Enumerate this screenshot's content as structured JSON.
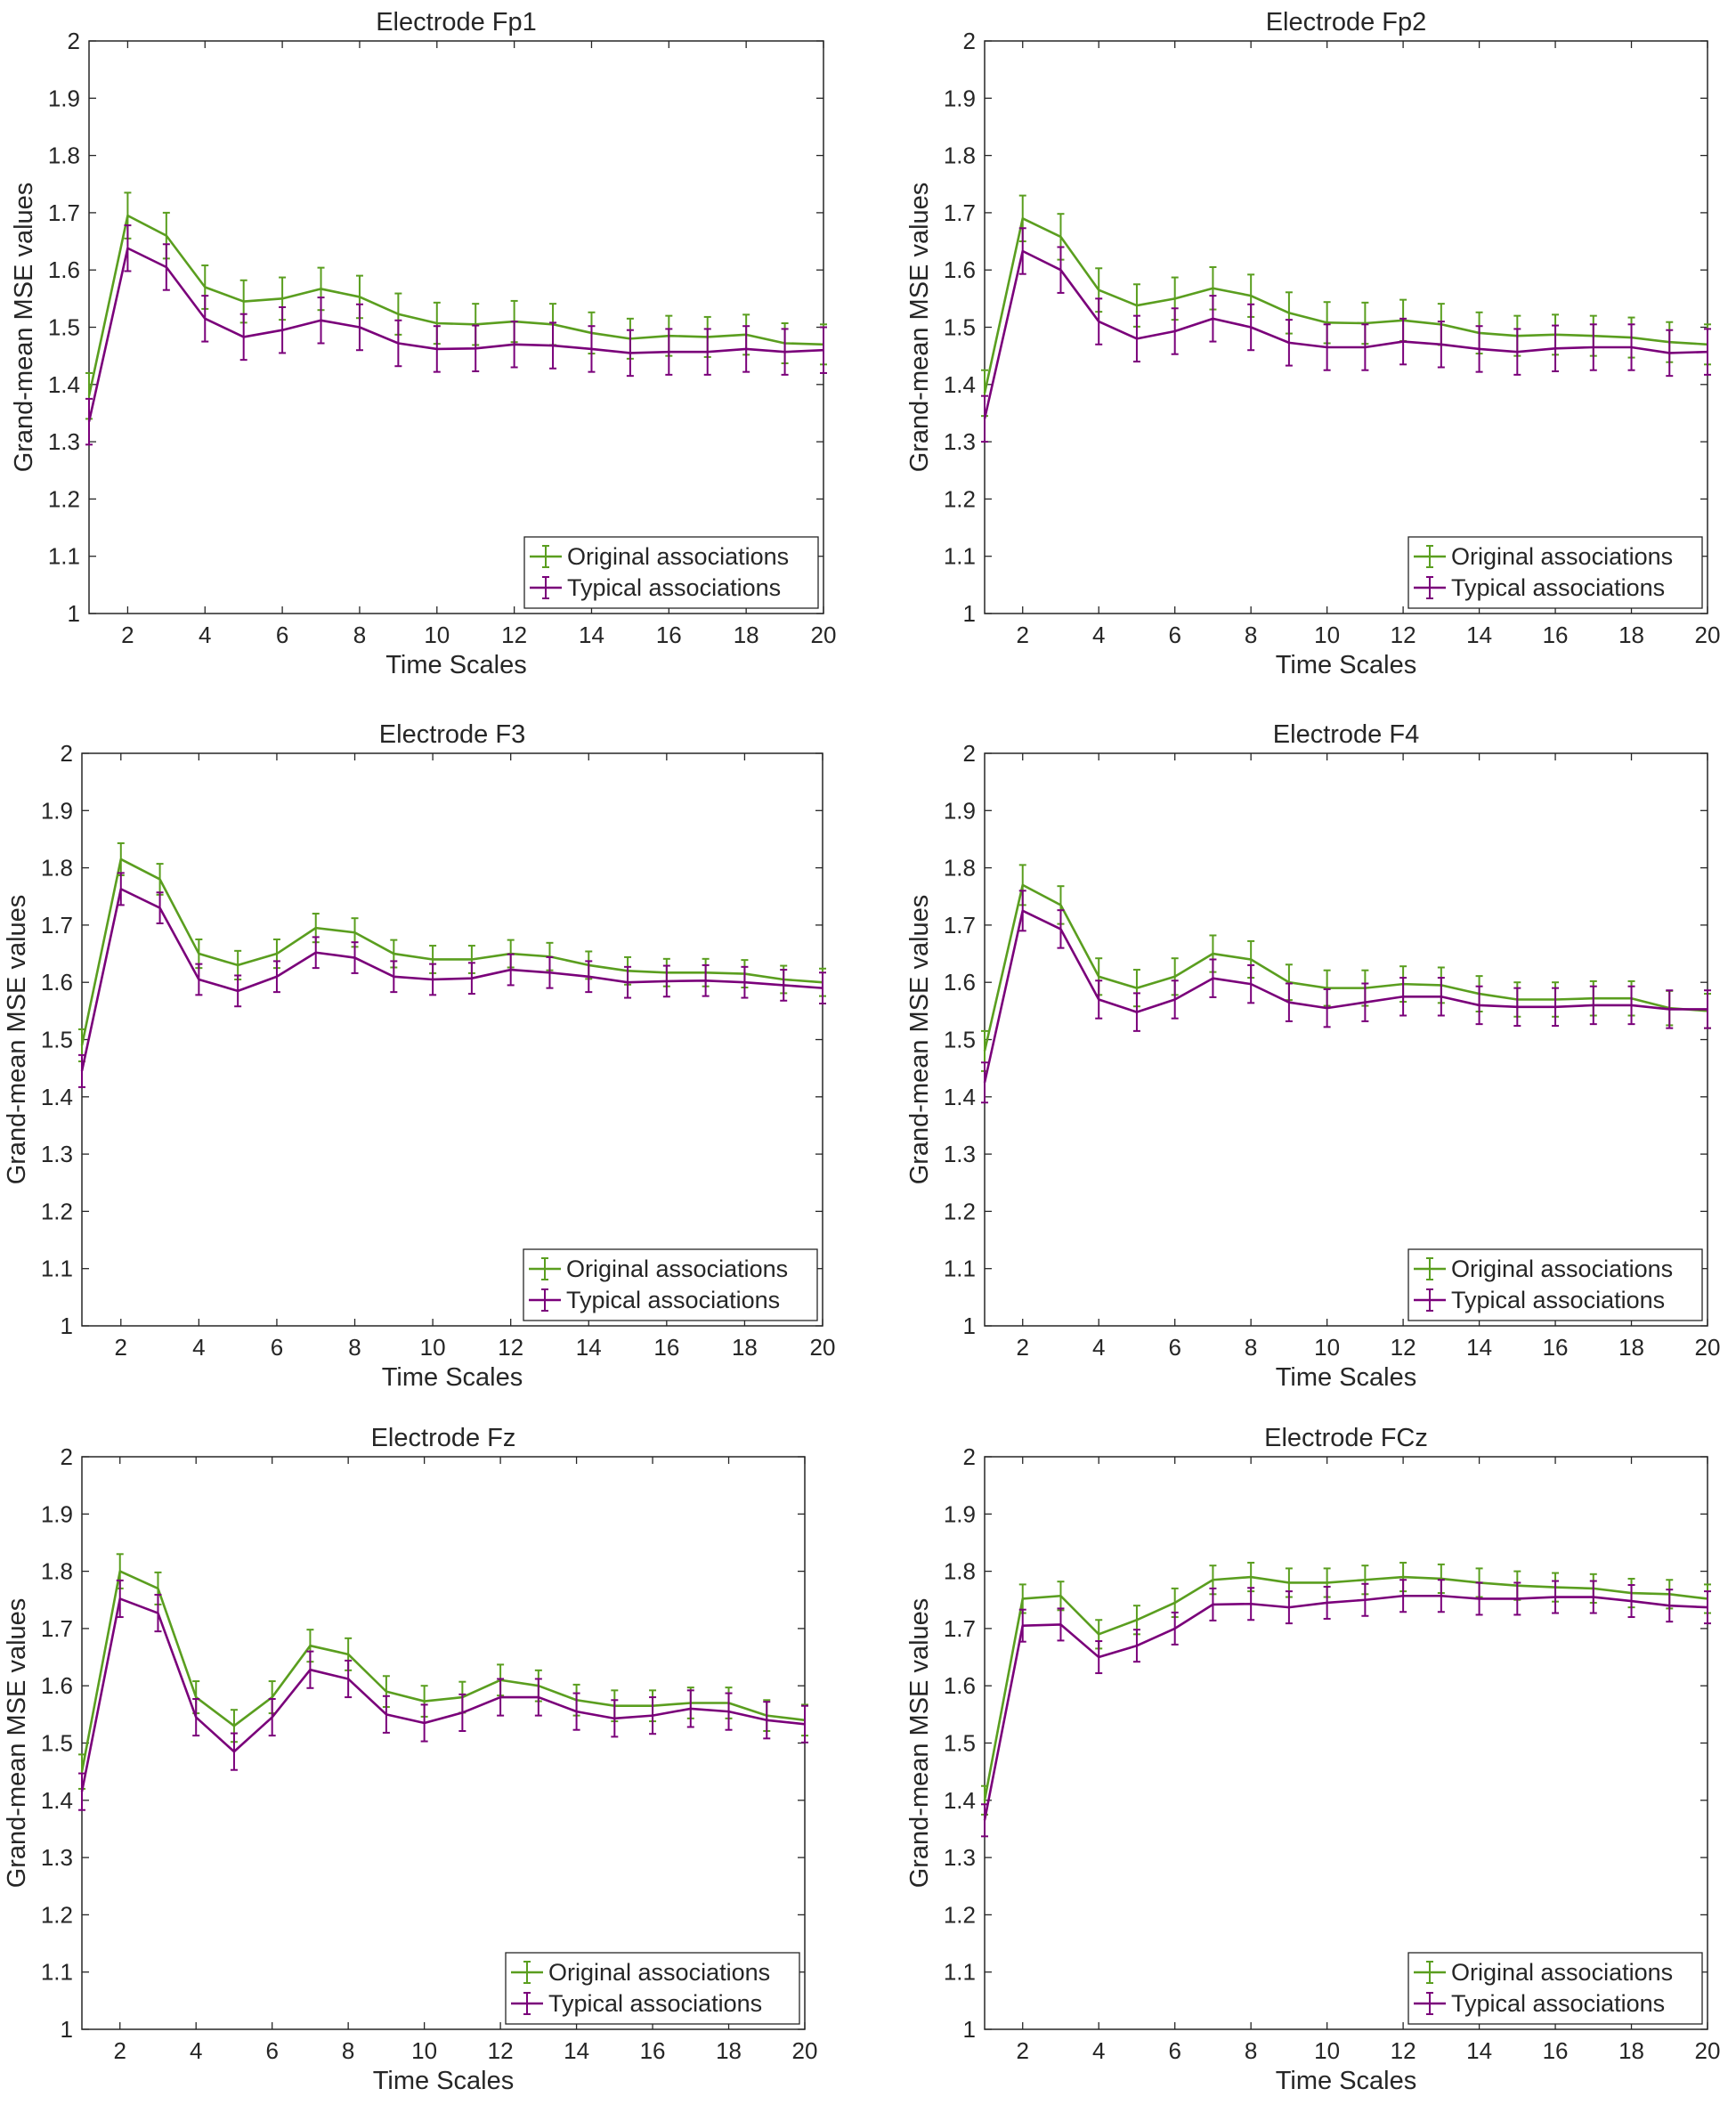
{
  "colors": {
    "original": "#5a9e1f",
    "typical": "#7a007a",
    "axis": "#262626",
    "background": "#ffffff"
  },
  "chart_data": [
    {
      "type": "line",
      "title": "Electrode Fp1",
      "xlabel": "Time Scales",
      "ylabel": "Grand-mean MSE values",
      "xlim": [
        1,
        20
      ],
      "ylim": [
        1,
        2
      ],
      "xticks": [
        2,
        4,
        6,
        8,
        10,
        12,
        14,
        16,
        18,
        20
      ],
      "yticks": [
        1,
        1.1,
        1.2,
        1.3,
        1.4,
        1.5,
        1.6,
        1.7,
        1.8,
        1.9,
        2
      ],
      "legend_position": "bottom-right",
      "x": [
        1,
        2,
        3,
        4,
        5,
        6,
        7,
        8,
        9,
        10,
        11,
        12,
        13,
        14,
        15,
        16,
        17,
        18,
        19,
        20
      ],
      "series": [
        {
          "name": "Original associations",
          "color_key": "original",
          "values": [
            1.38,
            1.695,
            1.66,
            1.57,
            1.545,
            1.55,
            1.567,
            1.553,
            1.523,
            1.507,
            1.505,
            1.51,
            1.505,
            1.49,
            1.48,
            1.485,
            1.483,
            1.487,
            1.472,
            1.47
          ],
          "errors": [
            0.04,
            0.04,
            0.04,
            0.038,
            0.037,
            0.037,
            0.037,
            0.037,
            0.036,
            0.036,
            0.036,
            0.036,
            0.036,
            0.036,
            0.035,
            0.035,
            0.035,
            0.035,
            0.035,
            0.035
          ]
        },
        {
          "name": "Typical associations",
          "color_key": "typical",
          "values": [
            1.335,
            1.638,
            1.605,
            1.515,
            1.483,
            1.495,
            1.512,
            1.5,
            1.472,
            1.462,
            1.463,
            1.47,
            1.468,
            1.462,
            1.455,
            1.457,
            1.457,
            1.462,
            1.457,
            1.46
          ],
          "errors": [
            0.04,
            0.04,
            0.04,
            0.04,
            0.04,
            0.04,
            0.04,
            0.04,
            0.04,
            0.04,
            0.04,
            0.04,
            0.04,
            0.04,
            0.04,
            0.04,
            0.04,
            0.04,
            0.04,
            0.04
          ]
        }
      ]
    },
    {
      "type": "line",
      "title": "Electrode Fp2",
      "xlabel": "Time Scales",
      "ylabel": "Grand-mean MSE values",
      "xlim": [
        1,
        20
      ],
      "ylim": [
        1,
        2
      ],
      "xticks": [
        2,
        4,
        6,
        8,
        10,
        12,
        14,
        16,
        18,
        20
      ],
      "yticks": [
        1,
        1.1,
        1.2,
        1.3,
        1.4,
        1.5,
        1.6,
        1.7,
        1.8,
        1.9,
        2
      ],
      "legend_position": "bottom-right",
      "x": [
        1,
        2,
        3,
        4,
        5,
        6,
        7,
        8,
        9,
        10,
        11,
        12,
        13,
        14,
        15,
        16,
        17,
        18,
        19,
        20
      ],
      "series": [
        {
          "name": "Original associations",
          "color_key": "original",
          "values": [
            1.385,
            1.69,
            1.658,
            1.565,
            1.538,
            1.55,
            1.568,
            1.555,
            1.525,
            1.508,
            1.507,
            1.512,
            1.505,
            1.49,
            1.485,
            1.487,
            1.485,
            1.482,
            1.474,
            1.47
          ],
          "errors": [
            0.04,
            0.04,
            0.04,
            0.038,
            0.037,
            0.037,
            0.037,
            0.037,
            0.036,
            0.036,
            0.036,
            0.036,
            0.036,
            0.036,
            0.035,
            0.035,
            0.035,
            0.035,
            0.035,
            0.035
          ]
        },
        {
          "name": "Typical associations",
          "color_key": "typical",
          "values": [
            1.34,
            1.633,
            1.6,
            1.51,
            1.48,
            1.493,
            1.515,
            1.5,
            1.473,
            1.465,
            1.465,
            1.475,
            1.47,
            1.462,
            1.457,
            1.463,
            1.465,
            1.465,
            1.455,
            1.457
          ],
          "errors": [
            0.04,
            0.04,
            0.04,
            0.04,
            0.04,
            0.04,
            0.04,
            0.04,
            0.04,
            0.04,
            0.04,
            0.04,
            0.04,
            0.04,
            0.04,
            0.04,
            0.04,
            0.04,
            0.04,
            0.04
          ]
        }
      ]
    },
    {
      "type": "line",
      "title": "Electrode F3",
      "xlabel": "Time Scales",
      "ylabel": "Grand-mean MSE values",
      "xlim": [
        1,
        20
      ],
      "ylim": [
        1,
        2
      ],
      "xticks": [
        2,
        4,
        6,
        8,
        10,
        12,
        14,
        16,
        18,
        20
      ],
      "yticks": [
        1,
        1.1,
        1.2,
        1.3,
        1.4,
        1.5,
        1.6,
        1.7,
        1.8,
        1.9,
        2
      ],
      "legend_position": "bottom-right",
      "x": [
        1,
        2,
        3,
        4,
        5,
        6,
        7,
        8,
        9,
        10,
        11,
        12,
        13,
        14,
        15,
        16,
        17,
        18,
        19,
        20
      ],
      "series": [
        {
          "name": "Original associations",
          "color_key": "original",
          "values": [
            1.49,
            1.815,
            1.78,
            1.65,
            1.63,
            1.65,
            1.695,
            1.687,
            1.65,
            1.64,
            1.64,
            1.65,
            1.645,
            1.63,
            1.62,
            1.617,
            1.617,
            1.615,
            1.605,
            1.6
          ],
          "errors": [
            0.028,
            0.028,
            0.027,
            0.025,
            0.025,
            0.025,
            0.025,
            0.025,
            0.024,
            0.024,
            0.024,
            0.024,
            0.024,
            0.024,
            0.024,
            0.024,
            0.024,
            0.024,
            0.024,
            0.024
          ]
        },
        {
          "name": "Typical associations",
          "color_key": "typical",
          "values": [
            1.445,
            1.763,
            1.73,
            1.605,
            1.585,
            1.61,
            1.652,
            1.643,
            1.61,
            1.605,
            1.607,
            1.622,
            1.617,
            1.61,
            1.6,
            1.602,
            1.603,
            1.6,
            1.595,
            1.59
          ],
          "errors": [
            0.028,
            0.028,
            0.027,
            0.027,
            0.027,
            0.027,
            0.027,
            0.027,
            0.027,
            0.027,
            0.027,
            0.027,
            0.027,
            0.027,
            0.027,
            0.027,
            0.027,
            0.027,
            0.027,
            0.027
          ]
        }
      ]
    },
    {
      "type": "line",
      "title": "Electrode F4",
      "xlabel": "Time Scales",
      "ylabel": "Grand-mean MSE values",
      "xlim": [
        1,
        20
      ],
      "ylim": [
        1,
        2
      ],
      "xticks": [
        2,
        4,
        6,
        8,
        10,
        12,
        14,
        16,
        18,
        20
      ],
      "yticks": [
        1,
        1.1,
        1.2,
        1.3,
        1.4,
        1.5,
        1.6,
        1.7,
        1.8,
        1.9,
        2
      ],
      "legend_position": "bottom-right",
      "x": [
        1,
        2,
        3,
        4,
        5,
        6,
        7,
        8,
        9,
        10,
        11,
        12,
        13,
        14,
        15,
        16,
        17,
        18,
        19,
        20
      ],
      "series": [
        {
          "name": "Original associations",
          "color_key": "original",
          "values": [
            1.48,
            1.77,
            1.735,
            1.61,
            1.59,
            1.61,
            1.65,
            1.64,
            1.6,
            1.59,
            1.59,
            1.597,
            1.595,
            1.58,
            1.57,
            1.57,
            1.572,
            1.572,
            1.555,
            1.55
          ],
          "errors": [
            0.035,
            0.035,
            0.033,
            0.032,
            0.032,
            0.032,
            0.032,
            0.032,
            0.031,
            0.031,
            0.031,
            0.031,
            0.031,
            0.031,
            0.03,
            0.03,
            0.03,
            0.03,
            0.03,
            0.03
          ]
        },
        {
          "name": "Typical associations",
          "color_key": "typical",
          "values": [
            1.425,
            1.725,
            1.693,
            1.57,
            1.548,
            1.57,
            1.607,
            1.597,
            1.565,
            1.555,
            1.565,
            1.575,
            1.575,
            1.56,
            1.557,
            1.557,
            1.56,
            1.56,
            1.553,
            1.553
          ],
          "errors": [
            0.035,
            0.035,
            0.033,
            0.033,
            0.033,
            0.033,
            0.033,
            0.033,
            0.033,
            0.033,
            0.033,
            0.033,
            0.033,
            0.033,
            0.033,
            0.033,
            0.033,
            0.033,
            0.033,
            0.033
          ]
        }
      ]
    },
    {
      "type": "line",
      "title": "Electrode Fz",
      "xlabel": "Time Scales",
      "ylabel": "Grand-mean MSE values",
      "xlim": [
        1,
        20
      ],
      "ylim": [
        1,
        2
      ],
      "xticks": [
        2,
        4,
        6,
        8,
        10,
        12,
        14,
        16,
        18,
        20
      ],
      "yticks": [
        1,
        1.1,
        1.2,
        1.3,
        1.4,
        1.5,
        1.6,
        1.7,
        1.8,
        1.9,
        2
      ],
      "legend_position": "bottom-right",
      "x": [
        1,
        2,
        3,
        4,
        5,
        6,
        7,
        8,
        9,
        10,
        11,
        12,
        13,
        14,
        15,
        16,
        17,
        18,
        19,
        20
      ],
      "series": [
        {
          "name": "Original associations",
          "color_key": "original",
          "values": [
            1.45,
            1.8,
            1.77,
            1.58,
            1.53,
            1.58,
            1.67,
            1.655,
            1.59,
            1.573,
            1.58,
            1.61,
            1.6,
            1.575,
            1.565,
            1.565,
            1.57,
            1.57,
            1.548,
            1.54
          ],
          "errors": [
            0.03,
            0.03,
            0.028,
            0.028,
            0.028,
            0.028,
            0.028,
            0.028,
            0.027,
            0.027,
            0.027,
            0.027,
            0.027,
            0.027,
            0.027,
            0.027,
            0.027,
            0.027,
            0.027,
            0.027
          ]
        },
        {
          "name": "Typical associations",
          "color_key": "typical",
          "values": [
            1.415,
            1.752,
            1.727,
            1.545,
            1.485,
            1.545,
            1.628,
            1.612,
            1.55,
            1.535,
            1.553,
            1.58,
            1.58,
            1.555,
            1.543,
            1.548,
            1.56,
            1.555,
            1.54,
            1.533
          ],
          "errors": [
            0.032,
            0.032,
            0.032,
            0.032,
            0.032,
            0.032,
            0.032,
            0.032,
            0.032,
            0.032,
            0.032,
            0.032,
            0.032,
            0.032,
            0.032,
            0.032,
            0.032,
            0.032,
            0.032,
            0.032
          ]
        }
      ]
    },
    {
      "type": "line",
      "title": "Electrode FCz",
      "xlabel": "Time Scales",
      "ylabel": "Grand-mean MSE values",
      "xlim": [
        1,
        20
      ],
      "ylim": [
        1,
        2
      ],
      "xticks": [
        2,
        4,
        6,
        8,
        10,
        12,
        14,
        16,
        18,
        20
      ],
      "yticks": [
        1,
        1.1,
        1.2,
        1.3,
        1.4,
        1.5,
        1.6,
        1.7,
        1.8,
        1.9,
        2
      ],
      "legend_position": "bottom-right",
      "x": [
        1,
        2,
        3,
        4,
        5,
        6,
        7,
        8,
        9,
        10,
        11,
        12,
        13,
        14,
        15,
        16,
        17,
        18,
        19,
        20
      ],
      "series": [
        {
          "name": "Original associations",
          "color_key": "original",
          "values": [
            1.4,
            1.752,
            1.757,
            1.69,
            1.715,
            1.745,
            1.785,
            1.79,
            1.78,
            1.78,
            1.785,
            1.79,
            1.787,
            1.78,
            1.775,
            1.772,
            1.77,
            1.762,
            1.76,
            1.752
          ],
          "errors": [
            0.025,
            0.025,
            0.025,
            0.025,
            0.025,
            0.025,
            0.025,
            0.025,
            0.025,
            0.025,
            0.025,
            0.025,
            0.025,
            0.025,
            0.025,
            0.025,
            0.025,
            0.025,
            0.025,
            0.025
          ]
        },
        {
          "name": "Typical associations",
          "color_key": "typical",
          "values": [
            1.365,
            1.705,
            1.707,
            1.65,
            1.67,
            1.7,
            1.742,
            1.743,
            1.737,
            1.745,
            1.75,
            1.757,
            1.757,
            1.752,
            1.752,
            1.755,
            1.755,
            1.748,
            1.74,
            1.737
          ],
          "errors": [
            0.028,
            0.028,
            0.028,
            0.028,
            0.028,
            0.028,
            0.028,
            0.028,
            0.028,
            0.028,
            0.028,
            0.028,
            0.028,
            0.028,
            0.028,
            0.028,
            0.028,
            0.028,
            0.028,
            0.028
          ]
        }
      ]
    }
  ]
}
